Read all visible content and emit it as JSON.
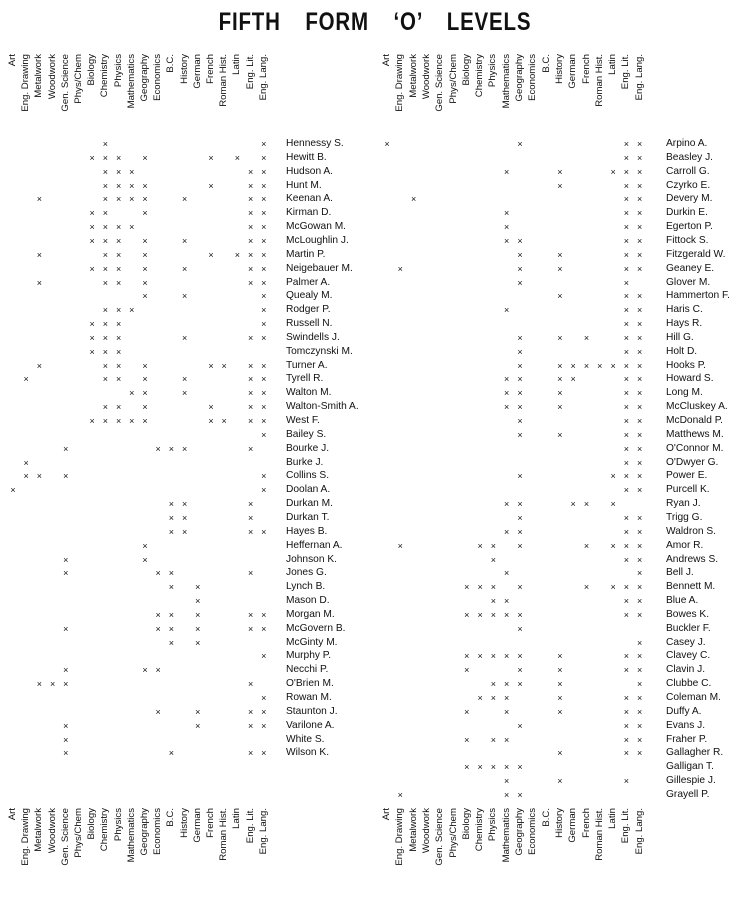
{
  "title": "FIFTH FORM ‘O’ LEVELS",
  "subjects_left": [
    "Art",
    "Eng. Drawing",
    "Metalwork",
    "Woodwork",
    "Gen. Science",
    "Phys/Chem",
    "Biology",
    "Chemistry",
    "Physics",
    "Mathematics",
    "Geography",
    "Economics",
    "B.C.",
    "History",
    "German",
    "French",
    "Roman Hist.",
    "Latin",
    "Eng. Lit.",
    "Eng. Lang."
  ],
  "subjects_right": [
    "Art",
    "Eng. Drawing",
    "Metalwork",
    "Woodwork",
    "Gen. Science",
    "Phys/Chem",
    "Biology",
    "Chemistry",
    "Physics",
    "Mathematics",
    "Geography",
    "Economics",
    "B.C.",
    "History",
    "German",
    "French",
    "Roman Hist.",
    "Latin",
    "Eng. Lit.",
    "Eng. Lang."
  ],
  "mark_symbol": "×",
  "left_students": [
    {
      "name": "Hennessy S.",
      "marks": [
        7,
        19
      ]
    },
    {
      "name": "Hewitt B.",
      "marks": [
        6,
        7,
        8,
        10,
        15,
        17,
        19
      ]
    },
    {
      "name": "Hudson A.",
      "marks": [
        7,
        8,
        9,
        18,
        19
      ]
    },
    {
      "name": "Hunt M.",
      "marks": [
        7,
        8,
        9,
        10,
        15,
        18,
        19
      ]
    },
    {
      "name": "Keenan A.",
      "marks": [
        2,
        7,
        8,
        9,
        10,
        13,
        18,
        19
      ]
    },
    {
      "name": "Kirman D.",
      "marks": [
        6,
        7,
        10,
        18,
        19
      ]
    },
    {
      "name": "McGowan M.",
      "marks": [
        6,
        7,
        8,
        9,
        18,
        19
      ]
    },
    {
      "name": "McLoughlin J.",
      "marks": [
        6,
        7,
        8,
        10,
        13,
        18,
        19
      ]
    },
    {
      "name": "Martin P.",
      "marks": [
        2,
        7,
        8,
        10,
        15,
        17,
        18,
        19
      ]
    },
    {
      "name": "Neigebauer M.",
      "marks": [
        6,
        7,
        8,
        10,
        13,
        18,
        19
      ]
    },
    {
      "name": "Palmer A.",
      "marks": [
        2,
        7,
        8,
        10,
        18,
        19
      ]
    },
    {
      "name": "Quealy M.",
      "marks": [
        10,
        13,
        19
      ]
    },
    {
      "name": "Rodger P.",
      "marks": [
        7,
        8,
        9,
        19
      ]
    },
    {
      "name": "Russell N.",
      "marks": [
        6,
        7,
        8,
        19
      ]
    },
    {
      "name": "Swindells J.",
      "marks": [
        6,
        7,
        8,
        13,
        18,
        19
      ]
    },
    {
      "name": "Tomczynski M.",
      "marks": [
        6,
        7,
        8
      ]
    },
    {
      "name": "Turner A.",
      "marks": [
        2,
        7,
        8,
        10,
        15,
        16,
        18,
        19
      ]
    },
    {
      "name": "Tyrell R.",
      "marks": [
        1,
        7,
        8,
        10,
        13,
        18,
        19
      ]
    },
    {
      "name": "Walton M.",
      "marks": [
        9,
        10,
        13,
        18,
        19
      ]
    },
    {
      "name": "Walton-Smith A.",
      "marks": [
        7,
        8,
        10,
        15,
        18,
        19
      ]
    },
    {
      "name": "West F.",
      "marks": [
        6,
        7,
        8,
        9,
        10,
        15,
        16,
        18,
        19
      ]
    },
    {
      "name": "Bailey S.",
      "marks": [
        19
      ]
    },
    {
      "name": "Bourke J.",
      "marks": [
        4,
        11,
        12,
        13,
        18
      ]
    },
    {
      "name": "Burke J.",
      "marks": [
        1
      ]
    },
    {
      "name": "Collins S.",
      "marks": [
        1,
        2,
        4,
        19
      ]
    },
    {
      "name": "Doolan A.",
      "marks": [
        0,
        19
      ]
    },
    {
      "name": "Durkan M.",
      "marks": [
        12,
        13,
        18
      ]
    },
    {
      "name": "Durkan T.",
      "marks": [
        12,
        13,
        18
      ]
    },
    {
      "name": "Hayes B.",
      "marks": [
        12,
        13,
        18,
        19
      ]
    },
    {
      "name": "Heffernan A.",
      "marks": [
        10
      ]
    },
    {
      "name": "Johnson K.",
      "marks": [
        4,
        10
      ]
    },
    {
      "name": "Jones G.",
      "marks": [
        4,
        11,
        12,
        18
      ]
    },
    {
      "name": "Lynch B.",
      "marks": [
        12,
        14
      ]
    },
    {
      "name": "Mason D.",
      "marks": [
        14
      ]
    },
    {
      "name": "Morgan M.",
      "marks": [
        11,
        12,
        14,
        18,
        19
      ]
    },
    {
      "name": "McGovern B.",
      "marks": [
        4,
        11,
        12,
        14,
        18,
        19
      ]
    },
    {
      "name": "McGinty M.",
      "marks": [
        12,
        14
      ]
    },
    {
      "name": "Murphy P.",
      "marks": [
        19
      ]
    },
    {
      "name": "Necchi P.",
      "marks": [
        4,
        10,
        11
      ]
    },
    {
      "name": "O'Brien M.",
      "marks": [
        2,
        3,
        4,
        18
      ]
    },
    {
      "name": "Rowan M.",
      "marks": [
        19
      ]
    },
    {
      "name": "Staunton J.",
      "marks": [
        11,
        14,
        18,
        19
      ]
    },
    {
      "name": "Varilone A.",
      "marks": [
        4,
        14,
        18,
        19
      ]
    },
    {
      "name": "White S.",
      "marks": [
        4
      ]
    },
    {
      "name": "Wilson K.",
      "marks": [
        4,
        12,
        18,
        19
      ]
    }
  ],
  "right_students": [
    {
      "name": "Arpino A.",
      "marks": [
        0,
        10,
        18,
        19
      ]
    },
    {
      "name": "Beasley J.",
      "marks": [
        18,
        19
      ]
    },
    {
      "name": "Carroll G.",
      "marks": [
        9,
        13,
        17,
        18,
        19
      ]
    },
    {
      "name": "Czyrko E.",
      "marks": [
        13,
        18,
        19
      ]
    },
    {
      "name": "Devery M.",
      "marks": [
        2,
        18,
        19
      ]
    },
    {
      "name": "Durkin E.",
      "marks": [
        9,
        18,
        19
      ]
    },
    {
      "name": "Egerton P.",
      "marks": [
        9,
        18,
        19
      ]
    },
    {
      "name": "Fittock S.",
      "marks": [
        9,
        10,
        18,
        19
      ]
    },
    {
      "name": "Fitzgerald W.",
      "marks": [
        10,
        13,
        18,
        19
      ]
    },
    {
      "name": "Geaney E.",
      "marks": [
        1,
        10,
        13,
        18,
        19
      ]
    },
    {
      "name": "Glover M.",
      "marks": [
        10,
        18
      ]
    },
    {
      "name": "Hammerton F.",
      "marks": [
        13,
        18,
        19
      ]
    },
    {
      "name": "Haris C.",
      "marks": [
        9,
        18,
        19
      ]
    },
    {
      "name": "Hays R.",
      "marks": [
        18,
        19
      ]
    },
    {
      "name": "Hill G.",
      "marks": [
        10,
        13,
        15,
        18,
        19
      ]
    },
    {
      "name": "Holt D.",
      "marks": [
        10,
        18,
        19
      ]
    },
    {
      "name": "Hooks P.",
      "marks": [
        10,
        13,
        14,
        15,
        16,
        17,
        18,
        19
      ]
    },
    {
      "name": "Howard S.",
      "marks": [
        9,
        10,
        13,
        14,
        18,
        19
      ]
    },
    {
      "name": "Long M.",
      "marks": [
        9,
        10,
        13,
        18,
        19
      ]
    },
    {
      "name": "McCluskey A.",
      "marks": [
        9,
        10,
        13,
        18,
        19
      ]
    },
    {
      "name": "McDonald P.",
      "marks": [
        10,
        18,
        19
      ]
    },
    {
      "name": "Matthews M.",
      "marks": [
        10,
        13,
        18,
        19
      ]
    },
    {
      "name": "O'Connor M.",
      "marks": [
        18,
        19
      ]
    },
    {
      "name": "O'Dwyer G.",
      "marks": [
        18,
        19
      ]
    },
    {
      "name": "Power E.",
      "marks": [
        10,
        17,
        18,
        19
      ]
    },
    {
      "name": "Purcell K.",
      "marks": [
        18,
        19
      ]
    },
    {
      "name": "Ryan J.",
      "marks": [
        9,
        10,
        14,
        15,
        17
      ]
    },
    {
      "name": "Trigg G.",
      "marks": [
        10,
        18,
        19
      ]
    },
    {
      "name": "Waldron S.",
      "marks": [
        9,
        10,
        18,
        19
      ]
    },
    {
      "name": "Amor R.",
      "marks": [
        1,
        7,
        8,
        10,
        15,
        17,
        18,
        19
      ]
    },
    {
      "name": "Andrews S.",
      "marks": [
        8,
        18,
        19
      ]
    },
    {
      "name": "Bell J.",
      "marks": [
        9,
        19
      ]
    },
    {
      "name": "Bennett M.",
      "marks": [
        6,
        7,
        8,
        10,
        15,
        17,
        18,
        19
      ]
    },
    {
      "name": "Blue A.",
      "marks": [
        8,
        9,
        18,
        19
      ]
    },
    {
      "name": "Bowes K.",
      "marks": [
        6,
        7,
        8,
        9,
        10,
        18,
        19
      ]
    },
    {
      "name": "Buckler F.",
      "marks": [
        10
      ]
    },
    {
      "name": "Casey J.",
      "marks": [
        19
      ]
    },
    {
      "name": "Clavey C.",
      "marks": [
        6,
        7,
        8,
        9,
        10,
        13,
        18,
        19
      ]
    },
    {
      "name": "Clavin J.",
      "marks": [
        6,
        10,
        13,
        18,
        19
      ]
    },
    {
      "name": "Clubbe C.",
      "marks": [
        8,
        9,
        10,
        13,
        19
      ]
    },
    {
      "name": "Coleman M.",
      "marks": [
        7,
        8,
        9,
        13,
        18,
        19
      ]
    },
    {
      "name": "Duffy A.",
      "marks": [
        6,
        9,
        13,
        18,
        19
      ]
    },
    {
      "name": "Evans J.",
      "marks": [
        10,
        18,
        19
      ]
    },
    {
      "name": "Fraher P.",
      "marks": [
        6,
        8,
        9,
        18,
        19
      ]
    },
    {
      "name": "Gallagher R.",
      "marks": [
        13,
        18,
        19
      ]
    },
    {
      "name": "Galligan T.",
      "marks": [
        6,
        7,
        8,
        9,
        10
      ]
    },
    {
      "name": "Gillespie J.",
      "marks": [
        9,
        13,
        18
      ]
    },
    {
      "name": "Grayell P.",
      "marks": [
        1,
        9,
        10
      ]
    }
  ]
}
